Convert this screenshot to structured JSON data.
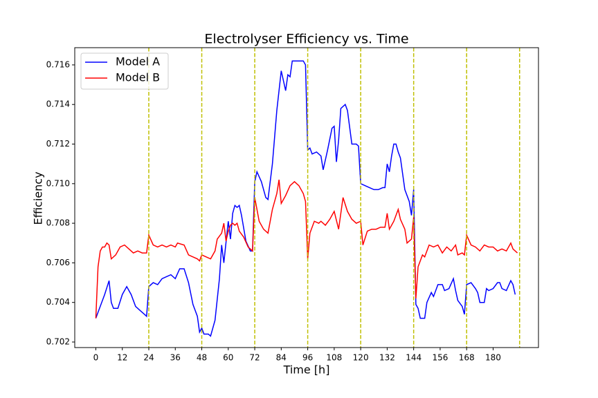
{
  "chart_data": {
    "type": "line",
    "title": "Electrolyser Efficiency vs. Time",
    "x_label": "Time [h]",
    "y_label": "Efficiency",
    "xlim": [
      -9.55,
      200.55
    ],
    "ylim": [
      0.70172,
      0.71687
    ],
    "xticks": [
      0,
      12,
      24,
      36,
      48,
      60,
      72,
      84,
      96,
      108,
      120,
      132,
      144,
      156,
      168,
      180
    ],
    "yticks": [
      0.702,
      0.704,
      0.706,
      0.708,
      {
        "value": 0.71,
        "label": "0.710"
      },
      0.712,
      0.714,
      0.716
    ],
    "vlines": [
      24,
      48,
      72,
      96,
      120,
      144,
      168,
      192
    ],
    "vline_color": "#bfbf00",
    "legend": "upper left",
    "series": [
      {
        "name": "Model A",
        "color": "#0000ff",
        "x": [
          0,
          2,
          4,
          6,
          7,
          8,
          10,
          12,
          14,
          16,
          18,
          20,
          22,
          23,
          24,
          26,
          28,
          30,
          32,
          34,
          36,
          38,
          40,
          42,
          44,
          46,
          47,
          48,
          49,
          51,
          52,
          54,
          56,
          57,
          58,
          60,
          61,
          62,
          63,
          64,
          65,
          66,
          68,
          70,
          71,
          72,
          73,
          75,
          77,
          78,
          80,
          82,
          84,
          86,
          87,
          88,
          89,
          92,
          94,
          95,
          96,
          97,
          98,
          100,
          102,
          103,
          105,
          107,
          108,
          109,
          110,
          111,
          113,
          114,
          116,
          118,
          119,
          120,
          122,
          124,
          126,
          128,
          130,
          131,
          132,
          133,
          134,
          135,
          136,
          137,
          138,
          140,
          142,
          143,
          144,
          145,
          146,
          147,
          149,
          150,
          152,
          153,
          155,
          157,
          158,
          160,
          162,
          163,
          164,
          166,
          167,
          168,
          170,
          172,
          173,
          174,
          176,
          177,
          178,
          180,
          182,
          183,
          184,
          186,
          188,
          189,
          190
        ],
        "values": [
          0.7032,
          0.7038,
          0.7044,
          0.7051,
          0.704,
          0.7037,
          0.7037,
          0.7044,
          0.7048,
          0.7044,
          0.7038,
          0.7036,
          0.7034,
          0.7033,
          0.7048,
          0.705,
          0.7049,
          0.7052,
          0.7053,
          0.7054,
          0.7052,
          0.7057,
          0.7057,
          0.705,
          0.7039,
          0.7033,
          0.7025,
          0.7027,
          0.7024,
          0.7024,
          0.7023,
          0.7031,
          0.7052,
          0.7069,
          0.706,
          0.7081,
          0.7072,
          0.7085,
          0.7089,
          0.7088,
          0.7089,
          0.7084,
          0.7071,
          0.7066,
          0.7066,
          0.7101,
          0.7106,
          0.7101,
          0.7093,
          0.7092,
          0.711,
          0.7137,
          0.7157,
          0.7147,
          0.7155,
          0.7154,
          0.7162,
          0.7162,
          0.7162,
          0.716,
          0.7117,
          0.7118,
          0.7115,
          0.7116,
          0.7114,
          0.7107,
          0.7117,
          0.7128,
          0.7129,
          0.7111,
          0.7122,
          0.7138,
          0.714,
          0.7137,
          0.712,
          0.712,
          0.7119,
          0.71,
          0.7099,
          0.7098,
          0.7097,
          0.7097,
          0.7098,
          0.7098,
          0.711,
          0.7106,
          0.7114,
          0.712,
          0.712,
          0.7116,
          0.7113,
          0.7097,
          0.7091,
          0.7084,
          0.7097,
          0.7039,
          0.7037,
          0.7032,
          0.7032,
          0.704,
          0.7045,
          0.7043,
          0.7049,
          0.7049,
          0.7046,
          0.7047,
          0.7052,
          0.7046,
          0.7041,
          0.7038,
          0.7034,
          0.7049,
          0.705,
          0.7047,
          0.7045,
          0.704,
          0.704,
          0.7047,
          0.7046,
          0.7047,
          0.705,
          0.705,
          0.7047,
          0.7046,
          0.7051,
          0.7049,
          0.7044
        ]
      },
      {
        "name": "Model B",
        "color": "#ff0000",
        "x": [
          0,
          1,
          2,
          3,
          4,
          5,
          6,
          7,
          9,
          11,
          13,
          15,
          17,
          19,
          21,
          23,
          24,
          26,
          28,
          30,
          32,
          34,
          36,
          37,
          40,
          42,
          44,
          46,
          47,
          48,
          50,
          52,
          54,
          55,
          57,
          58,
          59,
          60,
          61,
          62,
          63,
          64,
          65,
          67,
          69,
          71,
          72,
          74,
          76,
          78,
          80,
          82,
          83,
          84,
          86,
          88,
          90,
          92,
          94,
          95,
          96,
          97,
          99,
          101,
          102,
          104,
          106,
          107,
          108,
          110,
          112,
          114,
          116,
          118,
          120,
          121,
          123,
          125,
          127,
          129,
          131,
          132,
          133,
          135,
          137,
          138,
          140,
          141,
          143,
          144,
          145,
          146,
          148,
          149,
          151,
          153,
          155,
          157,
          159,
          161,
          163,
          164,
          166,
          167,
          168,
          170,
          172,
          174,
          176,
          178,
          180,
          182,
          184,
          186,
          188,
          189,
          191
        ],
        "values": [
          0.7032,
          0.7058,
          0.7066,
          0.7068,
          0.7068,
          0.707,
          0.7069,
          0.7062,
          0.7064,
          0.7068,
          0.7069,
          0.7067,
          0.7065,
          0.7066,
          0.7065,
          0.7065,
          0.7074,
          0.7069,
          0.7068,
          0.7069,
          0.7068,
          0.7069,
          0.7068,
          0.707,
          0.7069,
          0.7064,
          0.7063,
          0.7062,
          0.7061,
          0.7064,
          0.7063,
          0.7062,
          0.7066,
          0.7072,
          0.7075,
          0.708,
          0.7071,
          0.7076,
          0.7079,
          0.708,
          0.7079,
          0.708,
          0.7076,
          0.7073,
          0.7068,
          0.7066,
          0.7093,
          0.7081,
          0.7077,
          0.7075,
          0.7087,
          0.7095,
          0.7102,
          0.709,
          0.7094,
          0.7099,
          0.7101,
          0.7099,
          0.7095,
          0.7091,
          0.7062,
          0.7075,
          0.7081,
          0.708,
          0.7081,
          0.7079,
          0.7082,
          0.7084,
          0.7086,
          0.7077,
          0.7093,
          0.7086,
          0.7082,
          0.708,
          0.7081,
          0.7069,
          0.7076,
          0.7077,
          0.7077,
          0.7078,
          0.7078,
          0.7085,
          0.7077,
          0.7081,
          0.7087,
          0.7082,
          0.7077,
          0.707,
          0.7072,
          0.7083,
          0.7042,
          0.7058,
          0.7064,
          0.7063,
          0.7069,
          0.7068,
          0.7069,
          0.7065,
          0.7068,
          0.7066,
          0.7069,
          0.7064,
          0.7065,
          0.7064,
          0.7074,
          0.7069,
          0.7068,
          0.7066,
          0.7069,
          0.7068,
          0.7068,
          0.7066,
          0.7067,
          0.7066,
          0.707,
          0.7067,
          0.7065
        ]
      }
    ]
  }
}
